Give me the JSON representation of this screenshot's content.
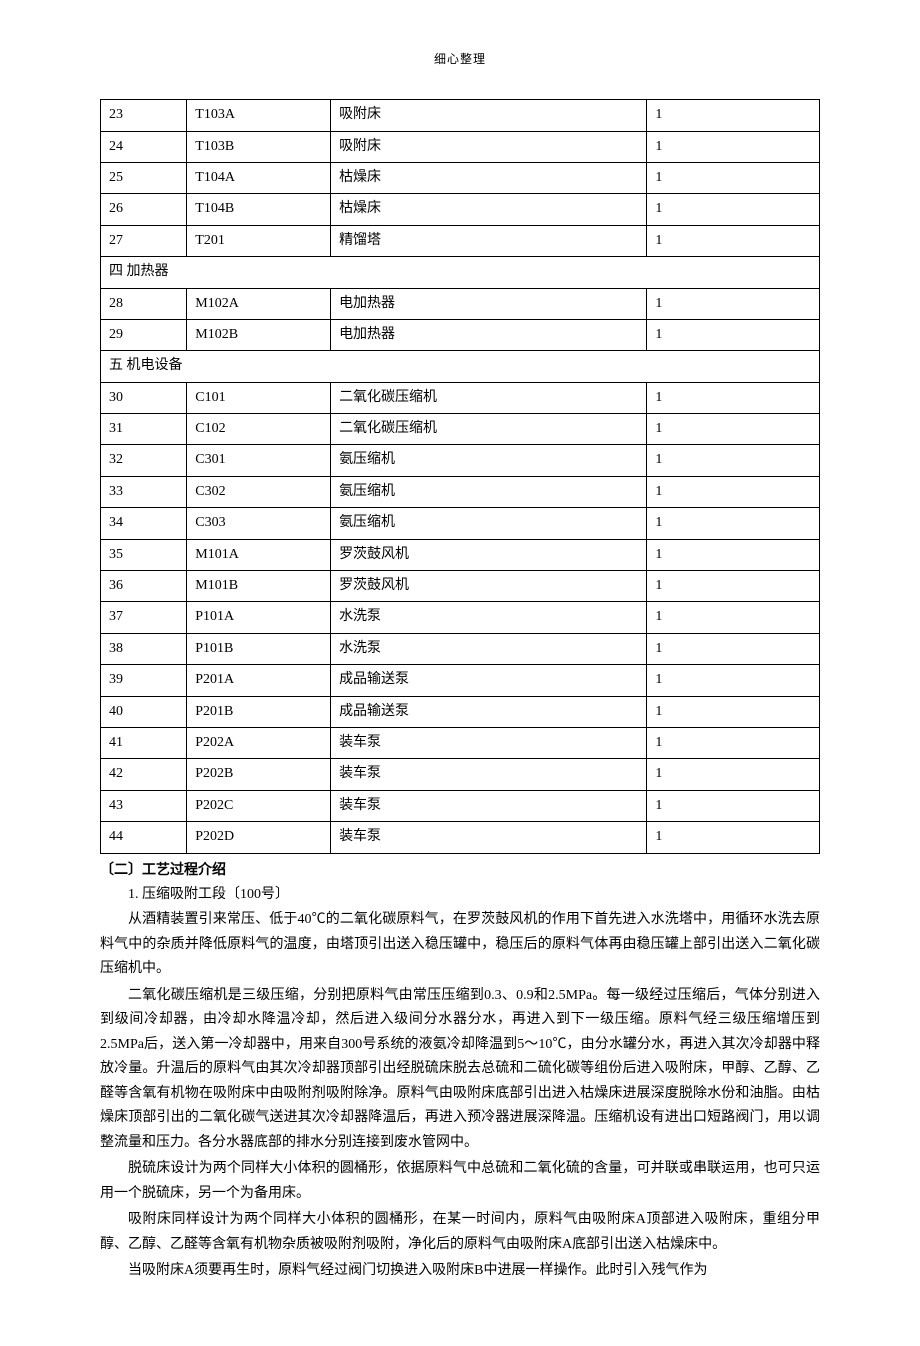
{
  "header": "细心整理",
  "table": {
    "col_widths": [
      "12%",
      "20%",
      "44%",
      "24%"
    ],
    "border_color": "#000000",
    "cell_padding": "4px 8px",
    "font_size": 14,
    "rows": [
      {
        "type": "data",
        "c1": "23",
        "c2": "T103A",
        "c3": "吸附床",
        "c4": "1"
      },
      {
        "type": "data",
        "c1": "24",
        "c2": "T103B",
        "c3": "吸附床",
        "c4": "1"
      },
      {
        "type": "data",
        "c1": "25",
        "c2": "T104A",
        "c3": "枯燥床",
        "c4": "1"
      },
      {
        "type": "data",
        "c1": "26",
        "c2": "T104B",
        "c3": "枯燥床",
        "c4": "1"
      },
      {
        "type": "data",
        "c1": "27",
        "c2": "T201",
        "c3": "精馏塔",
        "c4": "1"
      },
      {
        "type": "section",
        "label": "四 加热器"
      },
      {
        "type": "data",
        "c1": "28",
        "c2": "M102A",
        "c3": "电加热器",
        "c4": "1"
      },
      {
        "type": "data",
        "c1": "29",
        "c2": "M102B",
        "c3": "电加热器",
        "c4": "1"
      },
      {
        "type": "section",
        "label": "五 机电设备"
      },
      {
        "type": "data",
        "c1": "30",
        "c2": "C101",
        "c3": "二氧化碳压缩机",
        "c4": "1"
      },
      {
        "type": "data",
        "c1": "31",
        "c2": "C102",
        "c3": "二氧化碳压缩机",
        "c4": "1"
      },
      {
        "type": "data",
        "c1": "32",
        "c2": "C301",
        "c3": "氨压缩机",
        "c4": "1"
      },
      {
        "type": "data",
        "c1": "33",
        "c2": "C302",
        "c3": "氨压缩机",
        "c4": "1"
      },
      {
        "type": "data",
        "c1": "34",
        "c2": "C303",
        "c3": "氨压缩机",
        "c4": "1"
      },
      {
        "type": "data",
        "c1": "35",
        "c2": "M101A",
        "c3": "罗茨鼓风机",
        "c4": "1"
      },
      {
        "type": "data",
        "c1": "36",
        "c2": "M101B",
        "c3": "罗茨鼓风机",
        "c4": "1"
      },
      {
        "type": "data",
        "c1": "37",
        "c2": "P101A",
        "c3": "水洗泵",
        "c4": "1"
      },
      {
        "type": "data",
        "c1": "38",
        "c2": "P101B",
        "c3": "水洗泵",
        "c4": "1"
      },
      {
        "type": "data",
        "c1": "39",
        "c2": "P201A",
        "c3": "成品输送泵",
        "c4": "1"
      },
      {
        "type": "data",
        "c1": "40",
        "c2": "P201B",
        "c3": "成品输送泵",
        "c4": "1"
      },
      {
        "type": "data",
        "c1": "41",
        "c2": "P202A",
        "c3": "装车泵",
        "c4": "1"
      },
      {
        "type": "data",
        "c1": "42",
        "c2": "P202B",
        "c3": "装车泵",
        "c4": "1"
      },
      {
        "type": "data",
        "c1": "43",
        "c2": "P202C",
        "c3": "装车泵",
        "c4": "1"
      },
      {
        "type": "data",
        "c1": "44",
        "c2": "P202D",
        "c3": "装车泵",
        "c4": "1"
      }
    ]
  },
  "text": {
    "heading": "〔二〕工艺过程介绍",
    "subheading": "1. 压缩吸附工段〔100号〕",
    "paragraphs": [
      "从酒精装置引来常压、低于40℃的二氧化碳原料气，在罗茨鼓风机的作用下首先进入水洗塔中，用循环水洗去原料气中的杂质并降低原料气的温度，由塔顶引出送入稳压罐中，稳压后的原料气体再由稳压罐上部引出送入二氧化碳压缩机中。",
      "二氧化碳压缩机是三级压缩，分别把原料气由常压压缩到0.3、0.9和2.5MPa。每一级经过压缩后，气体分别进入到级间冷却器，由冷却水降温冷却，然后进入级间分水器分水，再进入到下一级压缩。原料气经三级压缩增压到2.5MPa后，送入第一冷却器中，用来自300号系统的液氨冷却降温到5～10℃，由分水罐分水，再进入其次冷却器中释放冷量。升温后的原料气由其次冷却器顶部引出经脱硫床脱去总硫和二硫化碳等组份后进入吸附床，甲醇、乙醇、乙醛等含氧有机物在吸附床中由吸附剂吸附除净。原料气由吸附床底部引出进入枯燥床进展深度脱除水份和油脂。由枯燥床顶部引出的二氧化碳气送进其次冷却器降温后，再进入预冷器进展深降温。压缩机设有进出口短路阀门，用以调整流量和压力。各分水器底部的排水分别连接到废水管网中。",
      "脱硫床设计为两个同样大小体积的圆桶形，依据原料气中总硫和二氧化硫的含量，可并联或串联运用，也可只运用一个脱硫床，另一个为备用床。",
      "吸附床同样设计为两个同样大小体积的圆桶形，在某一时间内，原料气由吸附床A顶部进入吸附床，重组分甲醇、乙醇、乙醛等含氧有机物杂质被吸附剂吸附，净化后的原料气由吸附床A底部引出送入枯燥床中。",
      "当吸附床A须要再生时，原料气经过阀门切换进入吸附床B中进展一样操作。此时引入残气作为"
    ]
  }
}
